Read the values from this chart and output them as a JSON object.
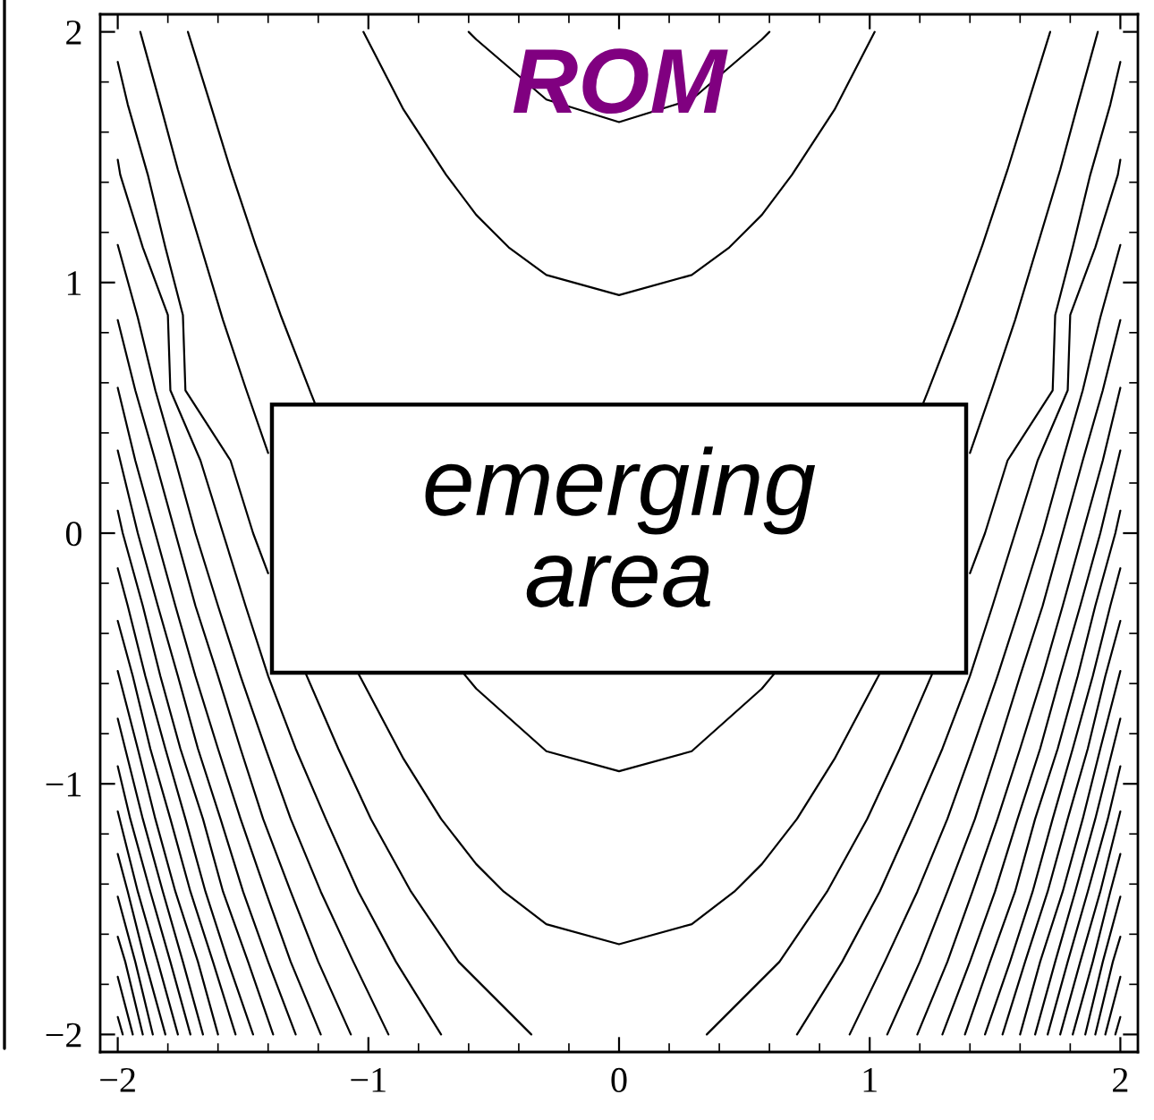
{
  "chart_data": {
    "type": "line",
    "xlim": [
      -2.07,
      2.07
    ],
    "ylim": [
      -2.07,
      2.07
    ],
    "xticks": [
      {
        "value": -2,
        "label": "−2"
      },
      {
        "value": -1.8,
        "label": null
      },
      {
        "value": -1.6,
        "label": null
      },
      {
        "value": -1.4,
        "label": null
      },
      {
        "value": -1.2,
        "label": null
      },
      {
        "value": -1,
        "label": "−1"
      },
      {
        "value": -0.8,
        "label": null
      },
      {
        "value": -0.6,
        "label": null
      },
      {
        "value": -0.4,
        "label": null
      },
      {
        "value": -0.2,
        "label": null
      },
      0,
      {
        "value": 0.2,
        "label": null
      },
      {
        "value": 0.4,
        "label": null
      },
      {
        "value": 0.6,
        "label": null
      },
      {
        "value": 0.8,
        "label": null
      },
      1,
      {
        "value": 1.2,
        "label": null
      },
      {
        "value": 1.4,
        "label": null
      },
      {
        "value": 1.6,
        "label": null
      },
      {
        "value": 1.8,
        "label": null
      },
      2
    ],
    "yticks": [
      {
        "value": -2,
        "label": "−2"
      },
      {
        "value": -1.8,
        "label": null
      },
      {
        "value": -1.6,
        "label": null
      },
      {
        "value": -1.4,
        "label": null
      },
      {
        "value": -1.2,
        "label": null
      },
      {
        "value": -1,
        "label": "−1"
      },
      {
        "value": -0.8,
        "label": null
      },
      {
        "value": -0.6,
        "label": null
      },
      {
        "value": -0.4,
        "label": null
      },
      {
        "value": -0.2,
        "label": null
      },
      0,
      {
        "value": 0.2,
        "label": null
      },
      {
        "value": 0.4,
        "label": null
      },
      {
        "value": 0.6,
        "label": null
      },
      {
        "value": 0.8,
        "label": null
      },
      1,
      {
        "value": 1.2,
        "label": null
      },
      {
        "value": 1.4,
        "label": null
      },
      {
        "value": 1.6,
        "label": null
      },
      {
        "value": 1.8,
        "label": null
      },
      2
    ],
    "annotations": [
      "ROM",
      "emerging\narea"
    ],
    "series": [
      {
        "color": "#000000",
        "x": [
          -0.6,
          -0.57,
          -0.29,
          0,
          0.29,
          0.57,
          0.6
        ],
        "values": [
          2.0,
          1.97,
          1.73,
          1.64,
          1.73,
          1.97,
          2.0
        ]
      },
      {
        "color": "#000000",
        "x": [
          -1.02,
          -0.86,
          -0.69,
          -0.57,
          -0.44,
          -0.29,
          0,
          0.29,
          0.44,
          0.57,
          0.69,
          0.86,
          1.02
        ],
        "values": [
          2.0,
          1.69,
          1.43,
          1.27,
          1.14,
          1.03,
          0.95,
          1.03,
          1.14,
          1.27,
          1.43,
          1.69,
          2.0
        ]
      },
      {
        "color": "#000000",
        "x": [
          -1.72,
          -1.63,
          -1.55,
          -1.45,
          -1.35,
          -1.23,
          -1.21,
          -0.9,
          -0.62,
          -0.57,
          -0.29,
          0,
          0.29,
          0.57,
          0.62,
          0.9,
          1.21,
          1.23,
          1.35,
          1.45,
          1.55,
          1.63,
          1.72
        ],
        "values": [
          2.0,
          1.71,
          1.45,
          1.15,
          0.87,
          0.56,
          0.51,
          null,
          -0.56,
          -0.62,
          -0.87,
          -0.95,
          -0.87,
          -0.62,
          -0.56,
          null,
          0.51,
          0.56,
          0.87,
          1.15,
          1.45,
          1.71,
          2.0
        ]
      },
      {
        "color": "#000000",
        "x": [
          -1.91,
          -1.83,
          -1.76,
          -1.67,
          -1.58,
          -1.49,
          -1.4,
          -1.2,
          -1.04,
          -0.86,
          -0.71,
          -0.57,
          -0.46,
          -0.29,
          0,
          0.29,
          0.46,
          0.57,
          0.71,
          0.86,
          1.04,
          1.2,
          1.4,
          1.49,
          1.58,
          1.67,
          1.76,
          1.83,
          1.91
        ],
        "values": [
          2.0,
          1.71,
          1.45,
          1.15,
          0.85,
          0.58,
          0.32,
          null,
          -0.56,
          -0.9,
          -1.14,
          -1.32,
          -1.43,
          -1.56,
          -1.64,
          -1.56,
          -1.43,
          -1.32,
          -1.14,
          -0.9,
          -0.56,
          null,
          0.32,
          0.58,
          0.85,
          1.15,
          1.45,
          1.71,
          2.0
        ]
      },
      {
        "color": "#000000",
        "x": [
          -2,
          -1.96,
          -1.88,
          -1.81,
          -1.74,
          -1.73,
          -1.55,
          -1.46,
          -1.4,
          -1.3,
          -1.25,
          -1.12,
          -0.99,
          -0.83,
          -0.64,
          -0.35
        ],
        "values": [
          1.88,
          1.71,
          1.43,
          1.14,
          0.87,
          0.57,
          0.29,
          0,
          -0.16,
          null,
          -0.56,
          -0.86,
          -1.14,
          -1.43,
          -1.71,
          -2.0
        ]
      },
      {
        "color": "#000000",
        "x": [
          -2,
          -1.99,
          -1.9,
          -1.8,
          -1.79,
          -1.67,
          -1.58,
          -1.49,
          -1.4,
          -1.29,
          -1.17,
          -1.04,
          -0.89,
          -0.71
        ],
        "values": [
          1.49,
          1.43,
          1.14,
          0.87,
          0.57,
          0.29,
          0,
          -0.29,
          -0.57,
          -0.86,
          -1.14,
          -1.43,
          -1.71,
          -2.0
        ]
      },
      {
        "color": "#000000",
        "x": [
          -2,
          -1.92,
          -1.85,
          -1.77,
          -1.69,
          -1.6,
          -1.51,
          -1.41,
          -1.31,
          -1.19,
          -1.06,
          -0.92
        ],
        "values": [
          1.15,
          0.86,
          0.57,
          0.29,
          0,
          -0.29,
          -0.57,
          -0.86,
          -1.14,
          -1.43,
          -1.71,
          -2.0
        ]
      },
      {
        "color": "#000000",
        "x": [
          -2,
          -1.93,
          -1.85,
          -1.77,
          -1.69,
          -1.6,
          -1.51,
          -1.42,
          -1.31,
          -1.2,
          -1.07
        ],
        "values": [
          0.85,
          0.57,
          0.29,
          0,
          -0.29,
          -0.57,
          -0.86,
          -1.14,
          -1.43,
          -1.71,
          -2.0
        ]
      },
      {
        "color": "#000000",
        "x": [
          -2,
          -1.93,
          -1.85,
          -1.77,
          -1.69,
          -1.6,
          -1.51,
          -1.41,
          -1.31,
          -1.19
        ],
        "values": [
          0.58,
          0.29,
          0,
          -0.29,
          -0.57,
          -0.86,
          -1.14,
          -1.43,
          -1.71,
          -2.0
        ]
      },
      {
        "color": "#000000",
        "x": [
          -2,
          -1.92,
          -1.84,
          -1.76,
          -1.68,
          -1.59,
          -1.5,
          -1.4,
          -1.29
        ],
        "values": [
          0.33,
          0,
          -0.29,
          -0.57,
          -0.86,
          -1.14,
          -1.43,
          -1.71,
          -2.0
        ]
      },
      {
        "color": "#000000",
        "x": [
          -2,
          -1.98,
          -1.9,
          -1.83,
          -1.75,
          -1.66,
          -1.58,
          -1.48,
          -1.38
        ],
        "values": [
          0.09,
          0,
          -0.29,
          -0.57,
          -0.86,
          -1.14,
          -1.43,
          -1.71,
          -2.0
        ]
      },
      {
        "color": "#000000",
        "x": [
          -2,
          -1.96,
          -1.89,
          -1.81,
          -1.73,
          -1.65,
          -1.56,
          -1.46
        ],
        "values": [
          -0.14,
          -0.29,
          -0.57,
          -0.86,
          -1.14,
          -1.43,
          -1.71,
          -2.0
        ]
      },
      {
        "color": "#000000",
        "x": [
          -2,
          -1.94,
          -1.87,
          -1.79,
          -1.71,
          -1.62,
          -1.53
        ],
        "values": [
          -0.35,
          -0.57,
          -0.86,
          -1.14,
          -1.43,
          -1.71,
          -2.0
        ]
      },
      {
        "color": "#000000",
        "x": [
          -2,
          -1.92,
          -1.85,
          -1.77,
          -1.68,
          -1.6
        ],
        "values": [
          -0.55,
          -0.86,
          -1.14,
          -1.43,
          -1.71,
          -2.0
        ]
      },
      {
        "color": "#000000",
        "x": [
          -2,
          -1.97,
          -1.9,
          -1.82,
          -1.74,
          -1.66
        ],
        "values": [
          -0.74,
          -0.86,
          -1.14,
          -1.43,
          -1.71,
          -2.0
        ]
      },
      {
        "color": "#000000",
        "x": [
          -2,
          -1.95,
          -1.87,
          -1.79,
          -1.71
        ],
        "values": [
          -0.93,
          -1.14,
          -1.43,
          -1.71,
          -2.0
        ]
      },
      {
        "color": "#000000",
        "x": [
          -2,
          -1.92,
          -1.84,
          -1.76
        ],
        "values": [
          -1.11,
          -1.43,
          -1.71,
          -2.0
        ]
      },
      {
        "color": "#000000",
        "x": [
          -2,
          -1.96,
          -1.89,
          -1.81
        ],
        "values": [
          -1.28,
          -1.43,
          -1.71,
          -2.0
        ]
      },
      {
        "color": "#000000",
        "x": [
          -2,
          -1.93,
          -1.86
        ],
        "values": [
          -1.45,
          -1.71,
          -2.0
        ]
      },
      {
        "color": "#000000",
        "x": [
          -2,
          -1.97,
          -1.9
        ],
        "values": [
          -1.61,
          -1.71,
          -2.0
        ]
      },
      {
        "color": "#000000",
        "x": [
          -2,
          -1.94
        ],
        "values": [
          -1.77,
          -2.0
        ]
      },
      {
        "color": "#000000",
        "x": [
          -2,
          -1.98
        ],
        "values": [
          -1.93,
          -2.0
        ]
      },
      {
        "color": "#000000",
        "x": [
          2,
          1.96,
          1.88,
          1.81,
          1.74,
          1.73,
          1.55,
          1.46,
          1.4,
          1.3,
          1.25,
          1.12,
          0.99,
          0.83,
          0.64,
          0.35
        ],
        "values": [
          1.88,
          1.71,
          1.43,
          1.14,
          0.87,
          0.57,
          0.29,
          0,
          -0.16,
          null,
          -0.56,
          -0.86,
          -1.14,
          -1.43,
          -1.71,
          -2.0
        ]
      },
      {
        "color": "#000000",
        "x": [
          2,
          1.99,
          1.9,
          1.8,
          1.79,
          1.67,
          1.58,
          1.49,
          1.4,
          1.29,
          1.17,
          1.04,
          0.89,
          0.71
        ],
        "values": [
          1.49,
          1.43,
          1.14,
          0.87,
          0.57,
          0.29,
          0,
          -0.29,
          -0.57,
          -0.86,
          -1.14,
          -1.43,
          -1.71,
          -2.0
        ]
      },
      {
        "color": "#000000",
        "x": [
          2,
          1.92,
          1.85,
          1.77,
          1.69,
          1.6,
          1.51,
          1.41,
          1.31,
          1.19,
          1.06,
          0.92
        ],
        "values": [
          1.15,
          0.86,
          0.57,
          0.29,
          0,
          -0.29,
          -0.57,
          -0.86,
          -1.14,
          -1.43,
          -1.71,
          -2.0
        ]
      },
      {
        "color": "#000000",
        "x": [
          2,
          1.93,
          1.85,
          1.77,
          1.69,
          1.6,
          1.51,
          1.42,
          1.31,
          1.2,
          1.07
        ],
        "values": [
          0.85,
          0.57,
          0.29,
          0,
          -0.29,
          -0.57,
          -0.86,
          -1.14,
          -1.43,
          -1.71,
          -2.0
        ]
      },
      {
        "color": "#000000",
        "x": [
          2,
          1.93,
          1.85,
          1.77,
          1.69,
          1.6,
          1.51,
          1.41,
          1.31,
          1.19
        ],
        "values": [
          0.58,
          0.29,
          0,
          -0.29,
          -0.57,
          -0.86,
          -1.14,
          -1.43,
          -1.71,
          -2.0
        ]
      },
      {
        "color": "#000000",
        "x": [
          2,
          1.92,
          1.84,
          1.76,
          1.68,
          1.59,
          1.5,
          1.4,
          1.29
        ],
        "values": [
          0.33,
          0,
          -0.29,
          -0.57,
          -0.86,
          -1.14,
          -1.43,
          -1.71,
          -2.0
        ]
      },
      {
        "color": "#000000",
        "x": [
          2,
          1.98,
          1.9,
          1.83,
          1.75,
          1.66,
          1.58,
          1.48,
          1.38
        ],
        "values": [
          0.09,
          0,
          -0.29,
          -0.57,
          -0.86,
          -1.14,
          -1.43,
          -1.71,
          -2.0
        ]
      },
      {
        "color": "#000000",
        "x": [
          2,
          1.96,
          1.89,
          1.81,
          1.73,
          1.65,
          1.56,
          1.46
        ],
        "values": [
          -0.14,
          -0.29,
          -0.57,
          -0.86,
          -1.14,
          -1.43,
          -1.71,
          -2.0
        ]
      },
      {
        "color": "#000000",
        "x": [
          2,
          1.94,
          1.87,
          1.79,
          1.71,
          1.62,
          1.53
        ],
        "values": [
          -0.35,
          -0.57,
          -0.86,
          -1.14,
          -1.43,
          -1.71,
          -2.0
        ]
      },
      {
        "color": "#000000",
        "x": [
          2,
          1.92,
          1.85,
          1.77,
          1.68,
          1.6
        ],
        "values": [
          -0.55,
          -0.86,
          -1.14,
          -1.43,
          -1.71,
          -2.0
        ]
      },
      {
        "color": "#000000",
        "x": [
          2,
          1.97,
          1.9,
          1.82,
          1.74,
          1.66
        ],
        "values": [
          -0.74,
          -0.86,
          -1.14,
          -1.43,
          -1.71,
          -2.0
        ]
      },
      {
        "color": "#000000",
        "x": [
          2,
          1.95,
          1.87,
          1.79,
          1.71
        ],
        "values": [
          -0.93,
          -1.14,
          -1.43,
          -1.71,
          -2.0
        ]
      },
      {
        "color": "#000000",
        "x": [
          2,
          1.92,
          1.84,
          1.76
        ],
        "values": [
          -1.11,
          -1.43,
          -1.71,
          -2.0
        ]
      },
      {
        "color": "#000000",
        "x": [
          2,
          1.96,
          1.89,
          1.81
        ],
        "values": [
          -1.28,
          -1.43,
          -1.71,
          -2.0
        ]
      },
      {
        "color": "#000000",
        "x": [
          2,
          1.93,
          1.86
        ],
        "values": [
          -1.45,
          -1.71,
          -2.0
        ]
      },
      {
        "color": "#000000",
        "x": [
          2,
          1.97,
          1.9
        ],
        "values": [
          -1.61,
          -1.71,
          -2.0
        ]
      },
      {
        "color": "#000000",
        "x": [
          2,
          1.94
        ],
        "values": [
          -1.77,
          -2.0
        ]
      },
      {
        "color": "#000000",
        "x": [
          2,
          1.98
        ],
        "values": [
          -1.93,
          -2.0
        ]
      }
    ]
  }
}
